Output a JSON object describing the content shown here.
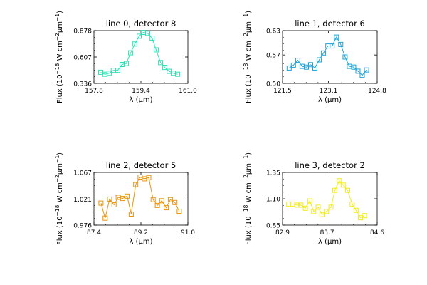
{
  "figure": {
    "background": "#ffffff"
  },
  "chart_data": [
    {
      "type": "line",
      "title": "line 0, detector 8",
      "xlabel": "λ (μm)",
      "ylabel": "Flux (10⁻¹⁸ W cm⁻²μm⁻¹)",
      "xlim": [
        157.8,
        161.0
      ],
      "ylim": [
        0.336,
        0.878
      ],
      "xticks": [
        "157.8",
        "159.4",
        "161.0"
      ],
      "yticks": [
        "0.336",
        "0.607",
        "0.878"
      ],
      "color": "#2de0b4",
      "marker": "square",
      "x": [
        158.03,
        158.17,
        158.32,
        158.46,
        158.61,
        158.76,
        158.9,
        159.05,
        159.19,
        159.34,
        159.48,
        159.63,
        159.78,
        159.92,
        160.07,
        160.21,
        160.36,
        160.5,
        160.65
      ],
      "y": [
        0.45,
        0.43,
        0.44,
        0.47,
        0.47,
        0.53,
        0.54,
        0.65,
        0.74,
        0.82,
        0.86,
        0.85,
        0.8,
        0.68,
        0.55,
        0.5,
        0.46,
        0.44,
        0.43
      ]
    },
    {
      "type": "line",
      "title": "line 1, detector 6",
      "xlabel": "λ (μm)",
      "ylabel": "Flux (10⁻¹⁸ W cm⁻²μm⁻¹)",
      "xlim": [
        121.5,
        124.8
      ],
      "ylim": [
        0.5,
        0.63
      ],
      "xticks": [
        "121.5",
        "123.1",
        "124.8"
      ],
      "yticks": [
        "0.50",
        "0.57",
        "0.63"
      ],
      "color": "#1ea3d6",
      "marker": "square",
      "x": [
        121.73,
        121.88,
        122.03,
        122.18,
        122.33,
        122.48,
        122.63,
        122.78,
        122.93,
        123.08,
        123.23,
        123.38,
        123.53,
        123.68,
        123.83,
        123.98,
        124.13,
        124.28,
        124.43
      ],
      "y": [
        0.538,
        0.545,
        0.557,
        0.542,
        0.54,
        0.546,
        0.538,
        0.558,
        0.575,
        0.592,
        0.592,
        0.614,
        0.596,
        0.565,
        0.542,
        0.54,
        0.53,
        0.52,
        0.533
      ]
    },
    {
      "type": "line",
      "title": "line 2, detector 5",
      "xlabel": "λ (μm)",
      "ylabel": "Flux (10⁻¹⁸ W cm⁻²μm⁻¹)",
      "xlim": [
        87.4,
        91.0
      ],
      "ylim": [
        0.976,
        1.067
      ],
      "xticks": [
        "87.4",
        "89.2",
        "91.0"
      ],
      "yticks": [
        "0.976",
        "1.021",
        "1.067"
      ],
      "color": "#e8950f",
      "marker": "square",
      "x": [
        87.67,
        87.83,
        88.0,
        88.17,
        88.33,
        88.5,
        88.67,
        88.83,
        89.0,
        89.17,
        89.33,
        89.5,
        89.67,
        89.83,
        90.0,
        90.17,
        90.33,
        90.5,
        90.67
      ],
      "y": [
        1.014,
        0.988,
        1.021,
        1.011,
        1.024,
        1.022,
        1.026,
        0.995,
        1.046,
        1.059,
        1.056,
        1.058,
        1.02,
        1.01,
        1.018,
        1.006,
        1.02,
        1.015,
        1.0
      ],
      "x_ticks_order_note": ""
    },
    {
      "type": "line",
      "title": "line 3, detector 2",
      "xlabel": "λ (μm)",
      "ylabel": "Flux (10⁻¹⁸ W cm⁻²μm⁻¹)",
      "xlim": [
        82.9,
        84.6
      ],
      "ylim": [
        0.85,
        1.35
      ],
      "xticks": [
        "82.9",
        "83.7",
        "84.6"
      ],
      "yticks": [
        "0.85",
        "1.10",
        "1.35"
      ],
      "color": "#f2ec1c",
      "marker": "square",
      "x": [
        83.01,
        83.08,
        83.16,
        83.23,
        83.31,
        83.39,
        83.46,
        83.54,
        83.61,
        83.69,
        83.77,
        83.84,
        83.92,
        83.99,
        84.07,
        84.15,
        84.22,
        84.3,
        84.37
      ],
      "y": [
        1.05,
        1.05,
        1.04,
        1.04,
        1.01,
        1.08,
        0.98,
        1.02,
        0.95,
        0.98,
        1.02,
        1.18,
        1.27,
        1.23,
        1.18,
        1.05,
        0.99,
        0.92,
        0.94
      ]
    }
  ]
}
